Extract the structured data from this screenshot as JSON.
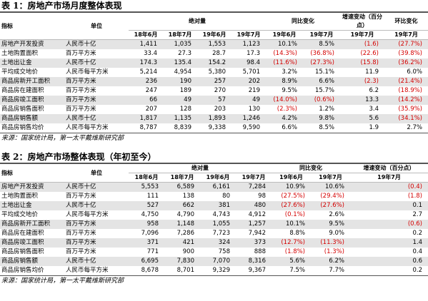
{
  "tables": [
    {
      "title": "表 1：房地产市场月度整体表现",
      "header": [
        "指标",
        "单位",
        "绝对量",
        "同比变化",
        "增速变动（百分点）",
        "环比变化"
      ],
      "subheader": [
        "18年6月",
        "18年7月",
        "19年6月",
        "19年7月",
        "19年6月",
        "19年7月",
        "19年7月",
        "19年7月"
      ],
      "rows": [
        [
          "房地产开发投资",
          "人民币十亿",
          "1,411",
          "1,035",
          "1,553",
          "1,123",
          "10.1%",
          "8.5%",
          "(1.6)",
          "(27.7%)"
        ],
        [
          "土地购置面积",
          "百万平方米",
          "33.4",
          "27.3",
          "28.7",
          "17.3",
          "(14.3%)",
          "(36.8%)",
          "(22.6)",
          "(39.8%)"
        ],
        [
          "土地出让金",
          "人民币十亿",
          "174.3",
          "135.4",
          "154.2",
          "98.4",
          "(11.6%)",
          "(27.3%)",
          "(15.8)",
          "(36.2%)"
        ],
        [
          "平均成交地价",
          "人民币每平方米",
          "5,214",
          "4,954",
          "5,380",
          "5,701",
          "3.2%",
          "15.1%",
          "11.9",
          "6.0%"
        ],
        [
          "商品房新开工面积",
          "百万平方米",
          "236",
          "190",
          "257",
          "202",
          "8.9%",
          "6.6%",
          "(2.3)",
          "(21.4%)"
        ],
        [
          "商品房在建面积",
          "百万平方米",
          "247",
          "189",
          "270",
          "219",
          "9.5%",
          "15.7%",
          "6.2",
          "(18.9%)"
        ],
        [
          "商品房竣工面积",
          "百万平方米",
          "66",
          "49",
          "57",
          "49",
          "(14.0%)",
          "(0.6%)",
          "13.3",
          "(14.2%)"
        ],
        [
          "商品房销售面积",
          "百万平方米",
          "207",
          "128",
          "203",
          "130",
          "(2.3%)",
          "1.2%",
          "3.4",
          "(35.9%)"
        ],
        [
          "商品房销售额",
          "人民币十亿",
          "1,817",
          "1,135",
          "1,893",
          "1,246",
          "4.2%",
          "9.8%",
          "5.6",
          "(34.1%)"
        ],
        [
          "商品房销售均价",
          "人民币每平方米",
          "8,787",
          "8,839",
          "9,338",
          "9,590",
          "6.6%",
          "8.5%",
          "1.9",
          "2.7%"
        ]
      ],
      "source": "来源：国家统计局，第一太平戴维斯研究部"
    },
    {
      "title": "表 2：房地产市场整体表现（年初至今）",
      "header": [
        "指标",
        "单位",
        "绝对量",
        "同比变化",
        "增速变动（百分点）"
      ],
      "subheader": [
        "18年6月",
        "18年7月",
        "19年6月",
        "19年7月",
        "19年6月",
        "19年7月",
        "19年7月"
      ],
      "rows": [
        [
          "房地产开发投资",
          "人民币十亿",
          "5,553",
          "6,589",
          "6,161",
          "7,284",
          "10.9%",
          "10.6%",
          "(0.4)"
        ],
        [
          "土地购置面积",
          "百万平方米",
          "111",
          "138",
          "80",
          "98",
          "(27.5%)",
          "(29.4%)",
          "(1.8)"
        ],
        [
          "土地出让金",
          "人民币十亿",
          "527",
          "662",
          "381",
          "480",
          "(27.6%)",
          "(27.6%)",
          "0.1"
        ],
        [
          "平均成交地价",
          "人民币每平方米",
          "4,750",
          "4,790",
          "4,743",
          "4,912",
          "(0.1%)",
          "2.6%",
          "2.7"
        ],
        [
          "商品房新开工面积",
          "百万平方米",
          "958",
          "1,148",
          "1,055",
          "1,257",
          "10.1%",
          "9.5%",
          "(0.6)"
        ],
        [
          "商品房在建面积",
          "百万平方米",
          "7,096",
          "7,286",
          "7,723",
          "7,942",
          "8.8%",
          "9.0%",
          "0.2"
        ],
        [
          "商品房竣工面积",
          "百万平方米",
          "371",
          "421",
          "324",
          "373",
          "(12.7%)",
          "(11.3%)",
          "1.4"
        ],
        [
          "商品房销售面积",
          "百万平方米",
          "771",
          "900",
          "758",
          "888",
          "(1.8%)",
          "(1.3%)",
          "0.4"
        ],
        [
          "商品房销售额",
          "人民币十亿",
          "6,695",
          "7,830",
          "7,070",
          "8,316",
          "5.6%",
          "6.2%",
          "0.6"
        ],
        [
          "商品房销售均价",
          "人民币每平方米",
          "8,678",
          "8,701",
          "9,329",
          "9,367",
          "7.5%",
          "7.7%",
          "0.2"
        ]
      ],
      "source": "来源：国家统计局，第一太平戴维斯研究部"
    }
  ]
}
